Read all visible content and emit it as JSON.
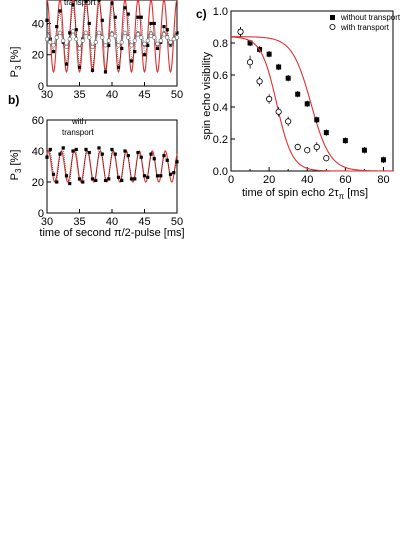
{
  "chart_data": [
    {
      "panel_label": "",
      "type": "scatter",
      "legend_label": "transport",
      "ylabel": "P3 [%]",
      "xlabel": "",
      "x_ticks": [
        "30",
        "35",
        "40",
        "45",
        "50"
      ],
      "y_ticks": [
        "0",
        "20",
        "40"
      ],
      "xlim": [
        30,
        50
      ],
      "ylim": [
        0,
        55
      ],
      "series": [
        {
          "marker": "filled-square",
          "fit_color": "#e03030",
          "fit": {
            "offset": 32,
            "amp": 23,
            "freq_per_ms": 0.5,
            "phase_ms": 38.0,
            "cycles_note": ""
          },
          "x": [
            30.0,
            30.5,
            31.0,
            31.5,
            32.0,
            32.5,
            33.0,
            33.5,
            34.0,
            34.5,
            35.0,
            35.5,
            36.0,
            36.5,
            37.0,
            37.5,
            38.0,
            38.5,
            39.0,
            39.5,
            40.0,
            40.5,
            41.0,
            41.5,
            42.0,
            42.5,
            43.0,
            43.5,
            44.0,
            44.5,
            45.0,
            45.5,
            46.0,
            46.5,
            47.0,
            47.5,
            48.0,
            48.5,
            49.0,
            49.5,
            50.0
          ],
          "y": [
            42,
            30,
            22,
            38,
            48,
            28,
            14,
            34,
            52,
            36,
            12,
            30,
            54,
            40,
            10,
            28,
            55,
            42,
            9,
            26,
            53,
            44,
            12,
            24,
            50,
            46,
            16,
            22,
            44,
            44,
            20,
            26,
            40,
            40,
            24,
            28,
            38,
            36,
            26,
            30,
            34
          ]
        },
        {
          "marker": "open-circle",
          "fit_color": "#7a7a7a",
          "fit": {
            "offset": 30,
            "amp": 5,
            "freq_per_ms": 0.5,
            "phase_ms": 38.0
          },
          "x": [
            30.0,
            30.5,
            31.0,
            31.5,
            32.0,
            32.5,
            33.0,
            33.5,
            34.0,
            34.5,
            35.0,
            35.5,
            36.0,
            36.5,
            37.0,
            37.5,
            38.0,
            38.5,
            39.0,
            39.5,
            40.0,
            40.5,
            41.0,
            41.5,
            42.0,
            42.5,
            43.0,
            43.5,
            44.0,
            44.5,
            45.0,
            45.5,
            46.0,
            46.5,
            47.0,
            47.5,
            48.0,
            48.5,
            49.0,
            49.5,
            50.0
          ],
          "y": [
            30,
            28,
            26,
            31,
            34,
            29,
            25,
            30,
            35,
            30,
            24,
            29,
            34,
            31,
            25,
            28,
            34,
            31,
            26,
            29,
            33,
            32,
            26,
            28,
            34,
            31,
            26,
            29,
            33,
            31,
            27,
            29,
            32,
            31,
            27,
            29,
            33,
            31,
            28,
            30,
            31
          ]
        }
      ]
    },
    {
      "panel_label": "b)",
      "type": "scatter",
      "legend_label": "with transport",
      "ylabel": "P3 [%]",
      "xlabel": "time of second π/2-pulse [ms]",
      "x_ticks": [
        "30",
        "35",
        "40",
        "45",
        "50"
      ],
      "y_ticks": [
        "0",
        "20",
        "40",
        "60"
      ],
      "xlim": [
        30,
        50
      ],
      "ylim": [
        0,
        60
      ],
      "series": [
        {
          "marker": "filled-square",
          "fit_color": "#e03030",
          "fit": {
            "offset": 30,
            "amp": 10,
            "freq_per_ms": 0.5,
            "phase_ms": 30.2
          },
          "x": [
            30.0,
            30.5,
            31.0,
            31.5,
            32.0,
            32.5,
            33.0,
            33.5,
            34.0,
            34.5,
            35.0,
            35.5,
            36.0,
            36.5,
            37.0,
            37.5,
            38.0,
            38.5,
            39.0,
            39.5,
            40.0,
            40.5,
            41.0,
            41.5,
            42.0,
            42.5,
            43.0,
            43.5,
            44.0,
            44.5,
            45.0,
            45.5,
            46.0,
            46.5,
            47.0,
            47.5,
            48.0,
            48.5,
            49.0,
            49.5,
            50.0
          ],
          "y": [
            36,
            41,
            25,
            20,
            38,
            42,
            24,
            19,
            40,
            41,
            22,
            20,
            41,
            39,
            22,
            21,
            42,
            38,
            21,
            22,
            41,
            38,
            23,
            21,
            40,
            37,
            22,
            22,
            39,
            36,
            24,
            23,
            38,
            35,
            24,
            24,
            37,
            34,
            25,
            26,
            33
          ]
        }
      ]
    },
    {
      "panel_label": "c)",
      "type": "scatter",
      "title": "",
      "xlabel": "time of spin echo 2τπ [ms]",
      "ylabel": "spin echo visibility",
      "x_ticks": [
        "0",
        "20",
        "40",
        "60",
        "80"
      ],
      "y_ticks": [
        "0.0",
        "0.2",
        "0.4",
        "0.6",
        "0.8",
        "1.0"
      ],
      "xlim": [
        0,
        85
      ],
      "ylim": [
        0,
        1.0
      ],
      "legend": {
        "position": "top-right",
        "entries": [
          "without transport",
          "with transport"
        ]
      },
      "series": [
        {
          "name": "without transport",
          "marker": "filled-square",
          "x": [
            5,
            10,
            15,
            20,
            25,
            30,
            35,
            40,
            45,
            50,
            60,
            70,
            80
          ],
          "y": [
            0.87,
            0.8,
            0.76,
            0.73,
            0.65,
            0.58,
            0.48,
            0.42,
            0.32,
            0.24,
            0.19,
            0.13,
            0.07
          ],
          "err": [
            0.03,
            0.02,
            0.02,
            0.02,
            0.02,
            0.02,
            0.02,
            0.02,
            0.02,
            0.02,
            0.02,
            0.02,
            0.02
          ],
          "fit": {
            "x0": 42,
            "width": 22,
            "top": 0.84
          }
        },
        {
          "name": "with transport",
          "marker": "open-circle",
          "x": [
            5,
            10,
            15,
            20,
            25,
            30,
            35,
            40,
            45,
            50
          ],
          "y": [
            0.87,
            0.68,
            0.56,
            0.45,
            0.37,
            0.31,
            0.15,
            0.13,
            0.15,
            0.08
          ],
          "err": [
            0.03,
            0.04,
            0.03,
            0.03,
            0.03,
            0.03,
            0.02,
            0.02,
            0.03,
            0.02
          ],
          "fit": {
            "x0": 24,
            "width": 18,
            "top": 0.84
          }
        }
      ]
    }
  ]
}
